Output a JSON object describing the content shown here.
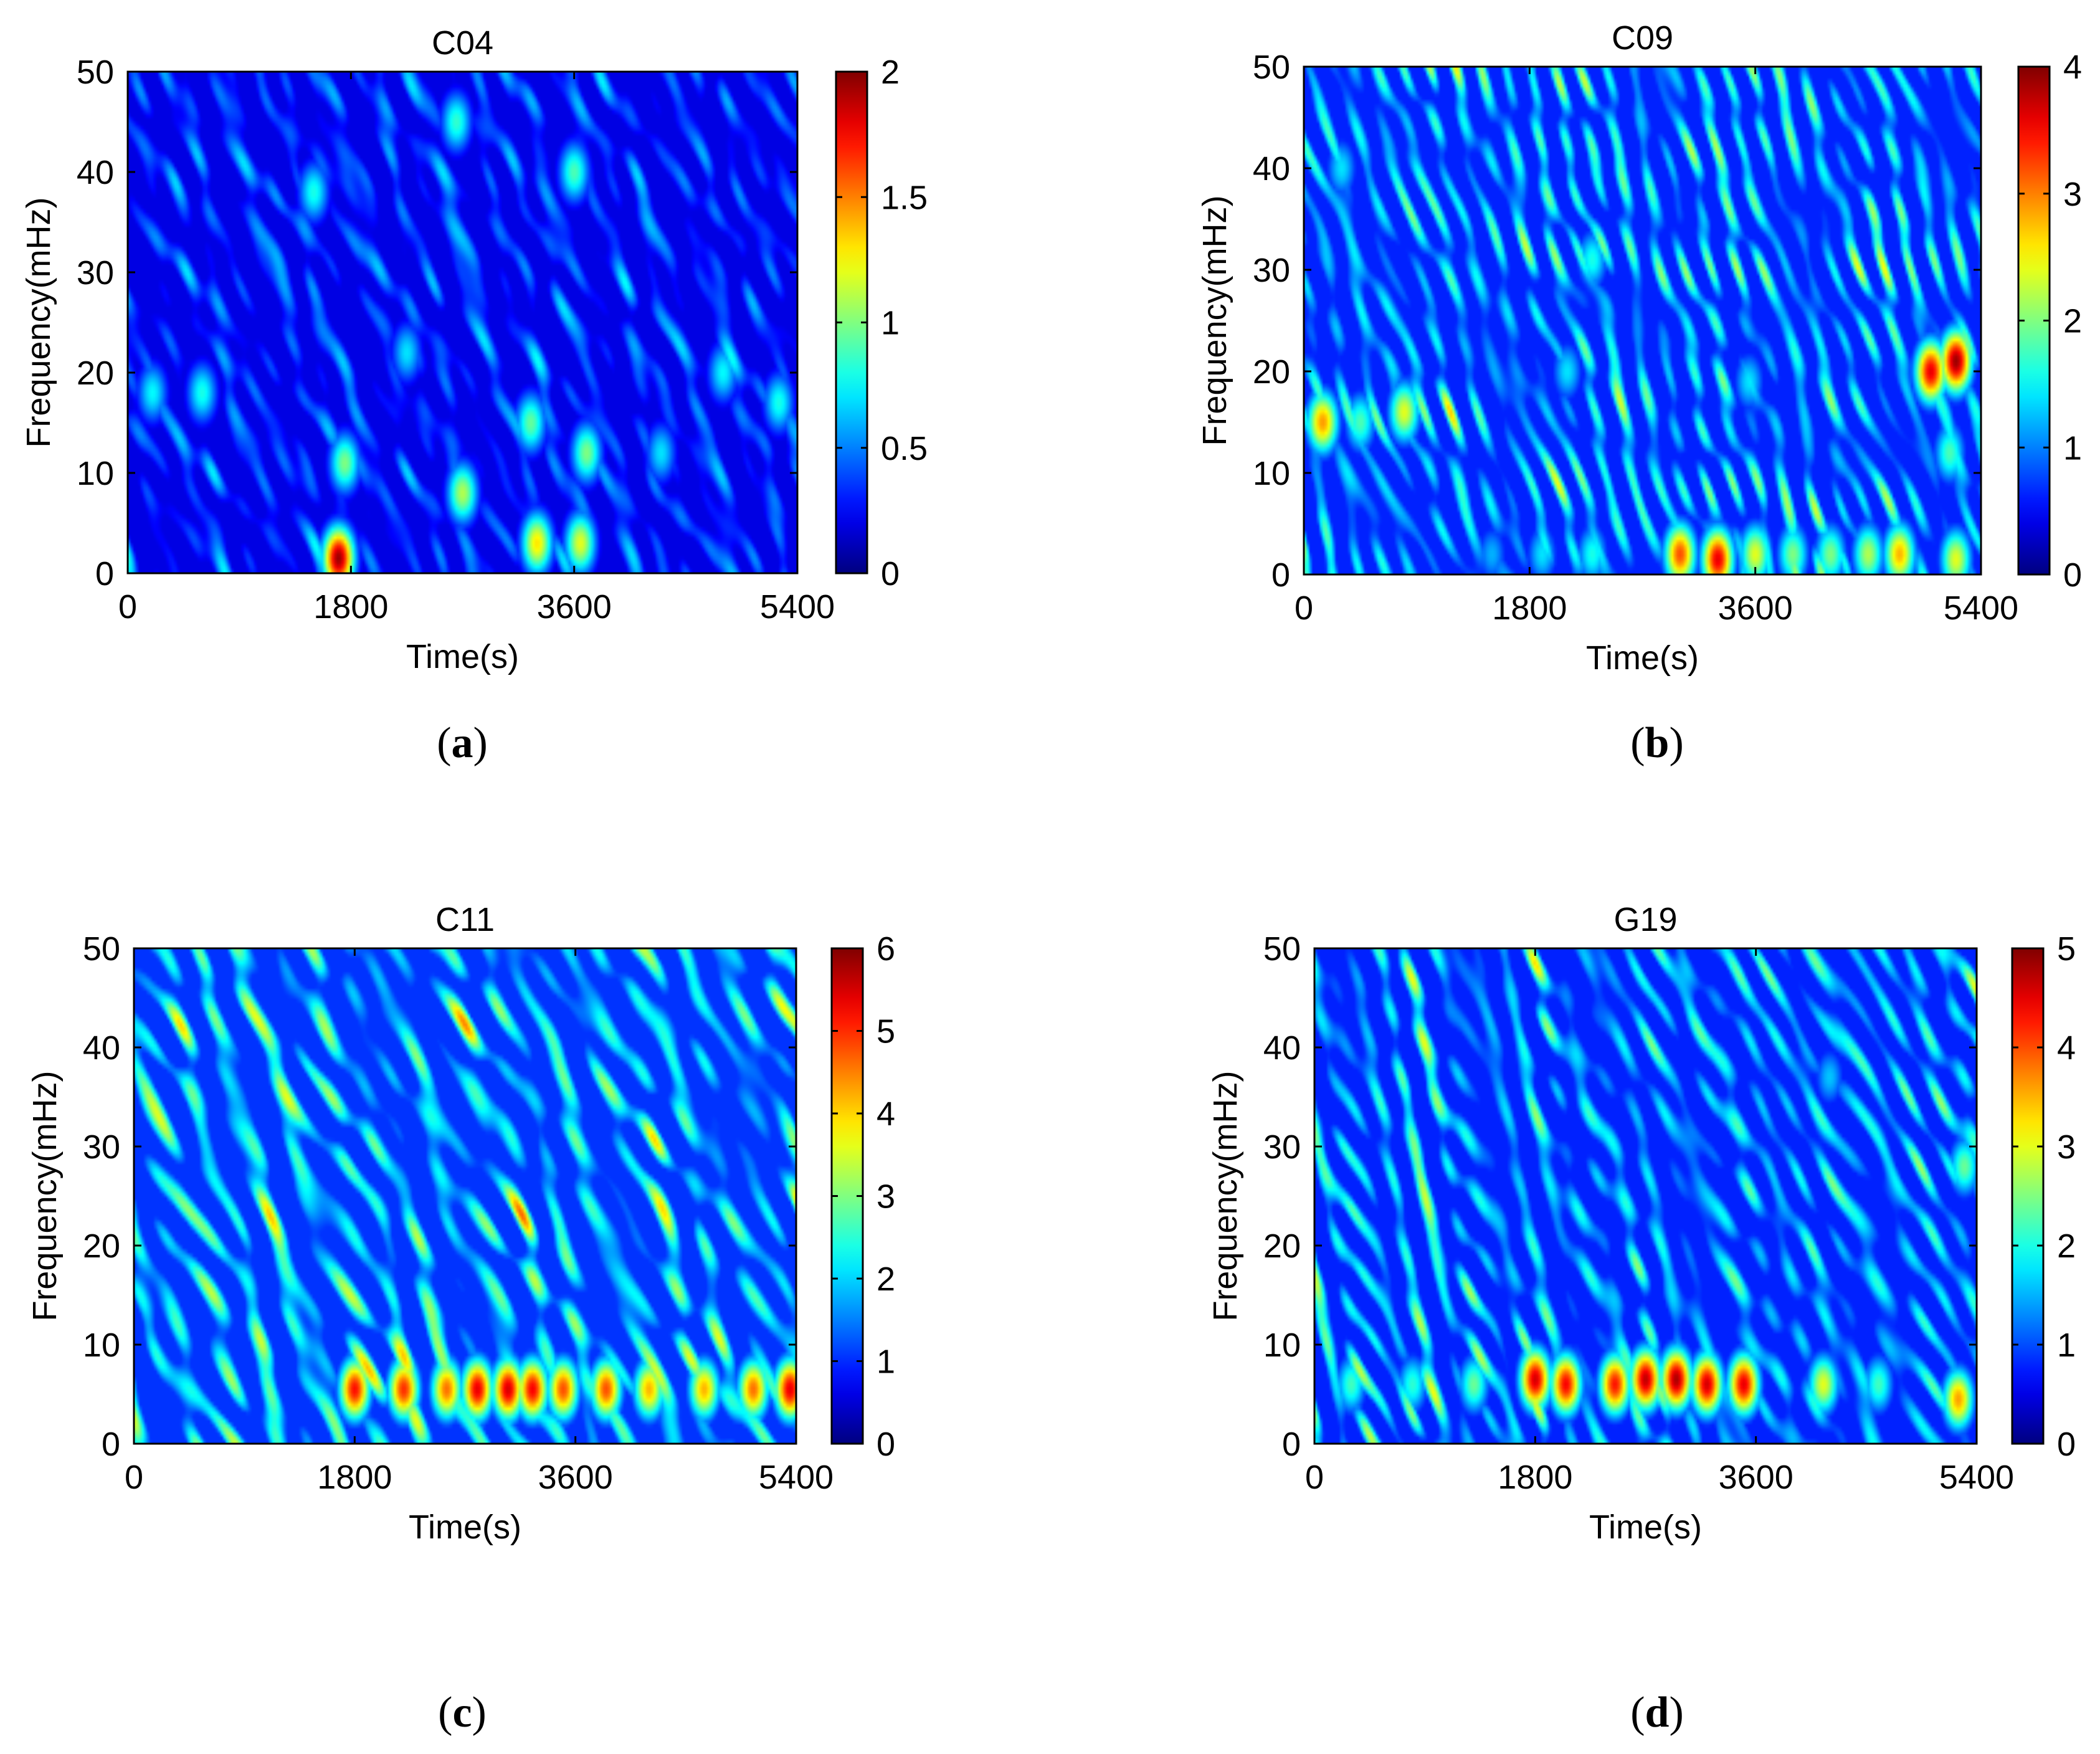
{
  "colormap": "jet",
  "chart_data": [
    {
      "type": "heatmap",
      "panel_label": "a",
      "title": "C04",
      "xlabel": "Time(s)",
      "ylabel": "Frequency(mHz)",
      "xlim": [
        0,
        5400
      ],
      "ylim": [
        0,
        50
      ],
      "x_ticks": [
        "0",
        "1800",
        "3600",
        "5400"
      ],
      "y_ticks": [
        "0",
        "10",
        "20",
        "30",
        "40",
        "50"
      ],
      "colorbar": {
        "min": 0,
        "max": 2,
        "ticks": [
          "0",
          "0.5",
          "1",
          "1.5",
          "2"
        ]
      },
      "background_level": 0.28,
      "hotspots": [
        {
          "t": 1700,
          "f": 1.5,
          "value": 1.95
        },
        {
          "t": 1750,
          "f": 11,
          "value": 1.0
        },
        {
          "t": 2700,
          "f": 8,
          "value": 1.1
        },
        {
          "t": 3300,
          "f": 3,
          "value": 1.3
        },
        {
          "t": 3650,
          "f": 3,
          "value": 1.2
        },
        {
          "t": 3700,
          "f": 12,
          "value": 1.0
        },
        {
          "t": 3250,
          "f": 15,
          "value": 0.95
        },
        {
          "t": 3600,
          "f": 40,
          "value": 0.9
        },
        {
          "t": 2650,
          "f": 45,
          "value": 0.85
        },
        {
          "t": 1500,
          "f": 38,
          "value": 0.8
        },
        {
          "t": 600,
          "f": 18,
          "value": 0.8
        },
        {
          "t": 200,
          "f": 18,
          "value": 0.75
        },
        {
          "t": 5250,
          "f": 17,
          "value": 0.8
        },
        {
          "t": 4800,
          "f": 20,
          "value": 0.75
        },
        {
          "t": 4300,
          "f": 12,
          "value": 0.7
        },
        {
          "t": 2250,
          "f": 22,
          "value": 0.7
        }
      ]
    },
    {
      "type": "heatmap",
      "panel_label": "b",
      "title": "C09",
      "xlabel": "Time(s)",
      "ylabel": "Frequency(mHz)",
      "xlim": [
        0,
        5400
      ],
      "ylim": [
        0,
        50
      ],
      "x_ticks": [
        "0",
        "1800",
        "3600",
        "5400"
      ],
      "y_ticks": [
        "0",
        "10",
        "20",
        "30",
        "40",
        "50"
      ],
      "colorbar": {
        "min": 0,
        "max": 4,
        "ticks": [
          "0",
          "1",
          "2",
          "3",
          "4"
        ]
      },
      "background_level": 0.45,
      "hotspots": [
        {
          "t": 150,
          "f": 15,
          "value": 2.9
        },
        {
          "t": 450,
          "f": 15,
          "value": 1.8
        },
        {
          "t": 800,
          "f": 16,
          "value": 2.4
        },
        {
          "t": 5000,
          "f": 20,
          "value": 3.6
        },
        {
          "t": 5200,
          "f": 21,
          "value": 3.9
        },
        {
          "t": 5150,
          "f": 12,
          "value": 1.8
        },
        {
          "t": 3000,
          "f": 2,
          "value": 3.2
        },
        {
          "t": 3300,
          "f": 1.5,
          "value": 3.6
        },
        {
          "t": 3600,
          "f": 2,
          "value": 2.4
        },
        {
          "t": 3900,
          "f": 2,
          "value": 2.0
        },
        {
          "t": 4200,
          "f": 2,
          "value": 2.0
        },
        {
          "t": 4500,
          "f": 2,
          "value": 2.2
        },
        {
          "t": 4750,
          "f": 2,
          "value": 2.8
        },
        {
          "t": 5200,
          "f": 1.5,
          "value": 2.4
        },
        {
          "t": 2300,
          "f": 2,
          "value": 1.6
        },
        {
          "t": 1900,
          "f": 2,
          "value": 1.4
        },
        {
          "t": 1500,
          "f": 2,
          "value": 1.2
        },
        {
          "t": 2300,
          "f": 31,
          "value": 1.6
        },
        {
          "t": 2100,
          "f": 20,
          "value": 1.4
        },
        {
          "t": 3550,
          "f": 19,
          "value": 1.4
        },
        {
          "t": 300,
          "f": 40,
          "value": 1.4
        }
      ]
    },
    {
      "type": "heatmap",
      "panel_label": "c",
      "title": "C11",
      "xlabel": "Time(s)",
      "ylabel": "Frequency(mHz)",
      "xlim": [
        0,
        5400
      ],
      "ylim": [
        0,
        50
      ],
      "x_ticks": [
        "0",
        "1800",
        "3600",
        "5400"
      ],
      "y_ticks": [
        "0",
        "10",
        "20",
        "30",
        "40",
        "50"
      ],
      "colorbar": {
        "min": 0,
        "max": 6,
        "ticks": [
          "0",
          "1",
          "2",
          "3",
          "4",
          "5",
          "6"
        ]
      },
      "background_level": 0.5,
      "hotspots": [
        {
          "t": 1800,
          "f": 5.5,
          "value": 5.2
        },
        {
          "t": 2200,
          "f": 5.5,
          "value": 5.0
        },
        {
          "t": 2550,
          "f": 5.5,
          "value": 4.6
        },
        {
          "t": 2800,
          "f": 5.5,
          "value": 5.4
        },
        {
          "t": 3050,
          "f": 5.5,
          "value": 5.5
        },
        {
          "t": 3250,
          "f": 5.5,
          "value": 5.3
        },
        {
          "t": 3500,
          "f": 5.5,
          "value": 4.8
        },
        {
          "t": 3850,
          "f": 5.5,
          "value": 4.8
        },
        {
          "t": 4200,
          "f": 5.5,
          "value": 4.2
        },
        {
          "t": 4650,
          "f": 5.5,
          "value": 4.2
        },
        {
          "t": 5050,
          "f": 5.5,
          "value": 4.6
        },
        {
          "t": 5350,
          "f": 5.5,
          "value": 5.4
        }
      ]
    },
    {
      "type": "heatmap",
      "panel_label": "d",
      "title": "G19",
      "xlabel": "Time(s)",
      "ylabel": "Frequency(mHz)",
      "xlim": [
        0,
        5400
      ],
      "ylim": [
        0,
        50
      ],
      "x_ticks": [
        "0",
        "1800",
        "3600",
        "5400"
      ],
      "y_ticks": [
        "0",
        "10",
        "20",
        "30",
        "40",
        "50"
      ],
      "colorbar": {
        "min": 0,
        "max": 5,
        "ticks": [
          "0",
          "1",
          "2",
          "3",
          "4",
          "5"
        ]
      },
      "background_level": 0.45,
      "hotspots": [
        {
          "t": 300,
          "f": 6,
          "value": 2.2
        },
        {
          "t": 800,
          "f": 6,
          "value": 2.1
        },
        {
          "t": 1300,
          "f": 6,
          "value": 2.4
        },
        {
          "t": 1800,
          "f": 6.5,
          "value": 4.6
        },
        {
          "t": 2050,
          "f": 6,
          "value": 4.4
        },
        {
          "t": 2450,
          "f": 6,
          "value": 4.3
        },
        {
          "t": 2700,
          "f": 6.5,
          "value": 4.7
        },
        {
          "t": 2950,
          "f": 6.5,
          "value": 4.8
        },
        {
          "t": 3200,
          "f": 6,
          "value": 4.6
        },
        {
          "t": 3500,
          "f": 6,
          "value": 4.5
        },
        {
          "t": 4150,
          "f": 6,
          "value": 3.0
        },
        {
          "t": 4600,
          "f": 6,
          "value": 2.2
        },
        {
          "t": 5250,
          "f": 4.5,
          "value": 3.6
        },
        {
          "t": 5300,
          "f": 28,
          "value": 2.4
        },
        {
          "t": 4200,
          "f": 37,
          "value": 1.6
        }
      ]
    }
  ]
}
